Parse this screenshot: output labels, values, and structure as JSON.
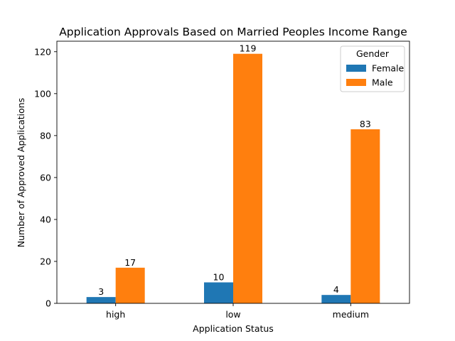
{
  "chart_data": {
    "type": "bar",
    "title": "Application Approvals Based on Married Peoples Income Range",
    "xlabel": "Application Status",
    "ylabel": "Number of Approved Applications",
    "categories": [
      "high",
      "low",
      "medium"
    ],
    "series": [
      {
        "name": "Female",
        "values": [
          3,
          10,
          4
        ],
        "color": "#1f77b4"
      },
      {
        "name": "Male",
        "values": [
          17,
          119,
          83
        ],
        "color": "#ff7f0e"
      }
    ],
    "ylim": [
      0,
      125
    ],
    "yticks": [
      0,
      20,
      40,
      60,
      80,
      100,
      120
    ],
    "legend": {
      "title": "Gender",
      "position": "top-right"
    },
    "grid": false
  }
}
